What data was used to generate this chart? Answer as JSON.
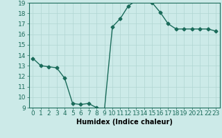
{
  "x": [
    0,
    1,
    2,
    3,
    4,
    5,
    6,
    7,
    8,
    9,
    10,
    11,
    12,
    13,
    14,
    15,
    16,
    17,
    18,
    19,
    20,
    21,
    22,
    23
  ],
  "y": [
    13.7,
    13.0,
    12.9,
    12.8,
    11.8,
    9.4,
    9.3,
    9.4,
    9.0,
    8.8,
    16.7,
    17.5,
    18.7,
    19.2,
    19.2,
    19.0,
    18.1,
    17.0,
    16.5,
    16.5,
    16.5,
    16.5,
    16.5,
    16.3
  ],
  "line_color": "#1a6b5a",
  "bg_color": "#cceae8",
  "grid_color": "#b0d5d2",
  "xlabel": "Humidex (Indice chaleur)",
  "ylim": [
    9,
    19
  ],
  "xlim": [
    -0.5,
    23.5
  ],
  "yticks": [
    9,
    10,
    11,
    12,
    13,
    14,
    15,
    16,
    17,
    18,
    19
  ],
  "xticks": [
    0,
    1,
    2,
    3,
    4,
    5,
    6,
    7,
    8,
    9,
    10,
    11,
    12,
    13,
    14,
    15,
    16,
    17,
    18,
    19,
    20,
    21,
    22,
    23
  ],
  "xtick_labels": [
    "0",
    "1",
    "2",
    "3",
    "4",
    "5",
    "6",
    "7",
    "8",
    "9",
    "10",
    "11",
    "12",
    "13",
    "14",
    "15",
    "16",
    "17",
    "18",
    "19",
    "20",
    "21",
    "22",
    "23"
  ],
  "marker": "D",
  "marker_size": 2.5,
  "linewidth": 1.0,
  "xlabel_fontsize": 7,
  "tick_fontsize": 6.5
}
